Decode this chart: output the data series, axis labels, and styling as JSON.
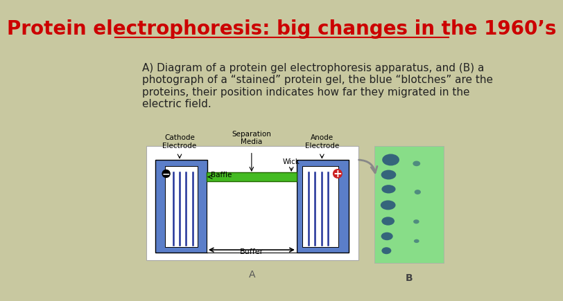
{
  "title": "Protein electrophoresis: big changes in the 1960’s",
  "title_color": "#cc0000",
  "title_fontsize": 20,
  "background_color": "#c8c8a0",
  "body_text": "A) Diagram of a protein gel electrophoresis apparatus, and (B) a\nphotograph of a “stained” protein gel, the blue “blotches” are the\nproteins, their position indicates how far they migrated in the\nelectric field.",
  "body_text_fontsize": 11,
  "label_A": "A",
  "label_B": "B"
}
